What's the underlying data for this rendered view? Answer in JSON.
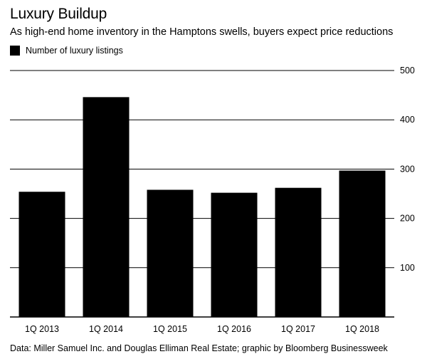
{
  "title": "Luxury Buildup",
  "subtitle": "As high-end home inventory in the Hamptons swells, buyers expect price reductions",
  "legend": {
    "label": "Number of luxury listings",
    "color": "#000000"
  },
  "source": "Data: Miller Samuel Inc. and Douglas Elliman Real Estate; graphic by Bloomberg Businessweek",
  "chart_data": {
    "type": "bar",
    "categories": [
      "1Q 2013",
      "1Q 2014",
      "1Q 2015",
      "1Q 2016",
      "1Q 2017",
      "1Q 2018"
    ],
    "series": [
      {
        "name": "Number of luxury listings",
        "values": [
          254,
          446,
          258,
          252,
          262,
          297
        ]
      }
    ],
    "ylim": [
      0,
      500
    ],
    "yticks": [
      100,
      200,
      300,
      400,
      500
    ],
    "xlabel": "",
    "ylabel": "",
    "grid": true,
    "bar_color": "#000000"
  }
}
